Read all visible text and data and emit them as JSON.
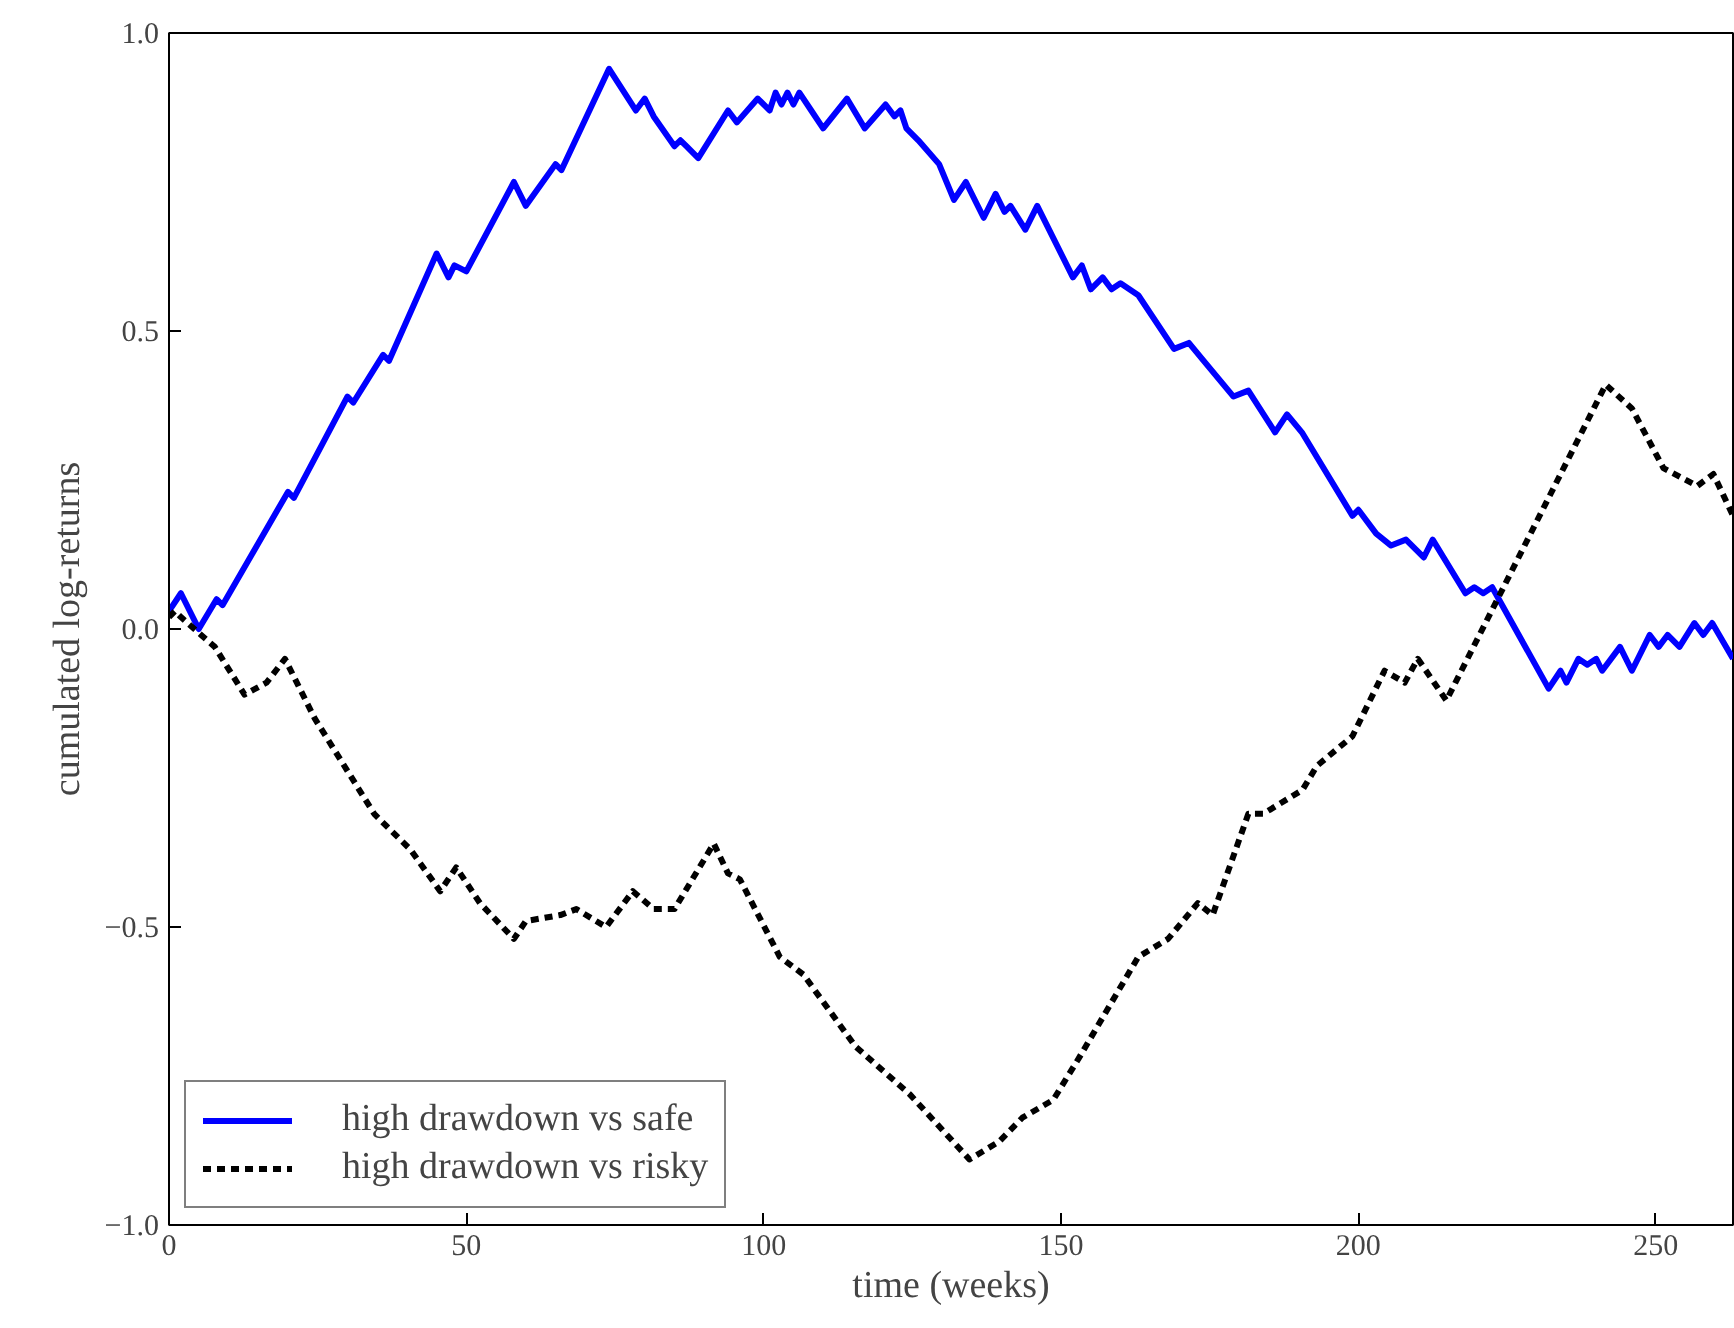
{
  "chart_data": {
    "type": "line",
    "xlabel": "time (weeks)",
    "ylabel": "cumulated log-returns",
    "xlim": [
      0,
      263
    ],
    "ylim": [
      -1.0,
      1.0
    ],
    "xticks": [
      0,
      50,
      100,
      150,
      200,
      250
    ],
    "yticks": [
      {
        "value": -1.0,
        "label": "−1.0"
      },
      {
        "value": -0.5,
        "label": "−0.5"
      },
      {
        "value": 0.0,
        "label": "0.0"
      },
      {
        "value": 0.5,
        "label": "0.5"
      },
      {
        "value": 1.0,
        "label": "1.0"
      }
    ],
    "grid": false,
    "legend": "bottom left",
    "series": [
      {
        "name": "high drawdown vs safe",
        "color": "#0000ff",
        "line_style": "solid",
        "x": [
          0,
          2,
          5,
          8,
          9,
          20,
          21,
          30,
          31,
          36,
          37,
          45,
          47,
          48,
          50,
          58,
          60,
          65,
          66,
          74,
          78.5,
          80,
          81.5,
          85,
          86,
          87,
          89,
          94,
          95.5,
          99,
          101,
          102,
          103,
          104,
          105,
          106,
          108,
          110,
          114,
          117,
          120.5,
          122,
          123,
          124,
          126,
          129.5,
          132,
          134,
          137,
          139,
          140.5,
          141.5,
          144,
          146,
          152,
          153.5,
          155,
          157,
          158.5,
          160,
          163,
          169,
          171.5,
          174,
          179,
          181.5,
          186,
          188,
          190.5,
          199,
          200,
          203,
          205.5,
          208,
          211,
          212.5,
          218,
          219.5,
          221,
          222.5,
          232,
          234,
          235,
          237,
          238.5,
          240,
          241,
          244,
          246,
          249,
          250.5,
          252,
          254,
          256.5,
          258,
          259.5,
          263
        ],
        "values": [
          0.03,
          0.06,
          0.0,
          0.05,
          0.04,
          0.23,
          0.22,
          0.39,
          0.38,
          0.46,
          0.45,
          0.63,
          0.59,
          0.61,
          0.6,
          0.75,
          0.71,
          0.78,
          0.77,
          0.94,
          0.87,
          0.89,
          0.86,
          0.81,
          0.82,
          0.81,
          0.79,
          0.87,
          0.85,
          0.89,
          0.87,
          0.9,
          0.88,
          0.9,
          0.88,
          0.9,
          0.87,
          0.84,
          0.89,
          0.84,
          0.88,
          0.86,
          0.87,
          0.84,
          0.82,
          0.78,
          0.72,
          0.75,
          0.69,
          0.73,
          0.7,
          0.71,
          0.67,
          0.71,
          0.59,
          0.61,
          0.57,
          0.59,
          0.57,
          0.58,
          0.56,
          0.47,
          0.48,
          0.45,
          0.39,
          0.4,
          0.33,
          0.36,
          0.33,
          0.19,
          0.2,
          0.16,
          0.14,
          0.15,
          0.12,
          0.15,
          0.06,
          0.07,
          0.06,
          0.07,
          -0.1,
          -0.07,
          -0.09,
          -0.05,
          -0.06,
          -0.05,
          -0.07,
          -0.03,
          -0.07,
          -0.01,
          -0.03,
          -0.01,
          -0.03,
          0.01,
          -0.01,
          0.01,
          -0.05
        ]
      },
      {
        "name": "high drawdown vs risky",
        "color": "#000000",
        "line_style": "dashed",
        "x": [
          0,
          1,
          2,
          5.4,
          7.7,
          12.7,
          16.4,
          19.5,
          24.5,
          34.5,
          36.5,
          40.6,
          45.6,
          48.3,
          52.3,
          58,
          60,
          65.8,
          68.5,
          73.5,
          78,
          81.5,
          85,
          91.6,
          94,
          96,
          102.7,
          106.7,
          115.4,
          124.5,
          134.6,
          139.6,
          143.5,
          148.7,
          153,
          163,
          168,
          173,
          175.5,
          181.5,
          184,
          190.6,
          193,
          199,
          204.4,
          207.8,
          210,
          214.8,
          241.6,
          246,
          251.3,
          257,
          259.7,
          263
        ],
        "values": [
          0.02,
          0.03,
          0.02,
          -0.01,
          -0.03,
          -0.11,
          -0.09,
          -0.05,
          -0.15,
          -0.31,
          -0.33,
          -0.37,
          -0.44,
          -0.4,
          -0.46,
          -0.52,
          -0.49,
          -0.48,
          -0.47,
          -0.5,
          -0.44,
          -0.47,
          -0.47,
          -0.36,
          -0.41,
          -0.42,
          -0.55,
          -0.58,
          -0.7,
          -0.78,
          -0.89,
          -0.86,
          -0.82,
          -0.79,
          -0.72,
          -0.55,
          -0.52,
          -0.46,
          -0.48,
          -0.31,
          -0.31,
          -0.27,
          -0.23,
          -0.18,
          -0.07,
          -0.09,
          -0.05,
          -0.12,
          0.41,
          0.37,
          0.27,
          0.24,
          0.26,
          0.19
        ]
      }
    ]
  }
}
